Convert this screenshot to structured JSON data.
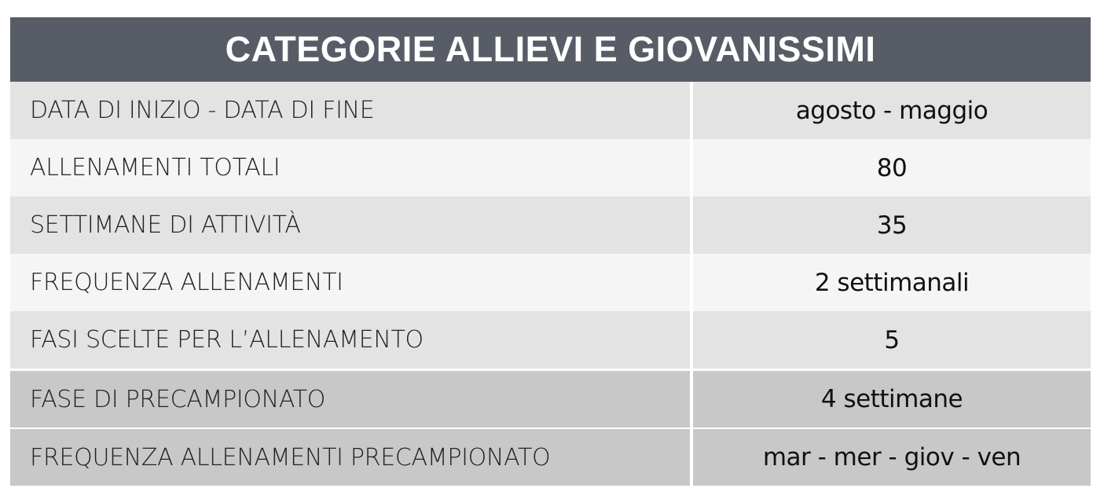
{
  "title": "CATEGORIE ALLIEVI E GIOVANISSIMI",
  "rows": [
    {
      "label": "DATA DI INIZIO - DATA DI FINE",
      "value": "agosto - maggio"
    },
    {
      "label": "ALLENAMENTI TOTALI",
      "value": "80"
    },
    {
      "label": "SETTIMANE DI ATTIVITÀ",
      "value": "35"
    },
    {
      "label": "FREQUENZA ALLENAMENTI",
      "value": "2 settimanali"
    },
    {
      "label": "FASI SCELTE PER L’ALLENAMENTO",
      "value": "5"
    },
    {
      "label": "FASE DI PRECAMPIONATO",
      "value": "4 settimane"
    },
    {
      "label": "FREQUENZA ALLENAMENTI PRECAMPIONATO",
      "value": "mar - mer - giov - ven"
    }
  ],
  "colors": {
    "header": "#585c66",
    "row_dark": "#e3e3e3",
    "row_light": "#f5f5f5",
    "row_precampionato": "#c8c8c8"
  }
}
